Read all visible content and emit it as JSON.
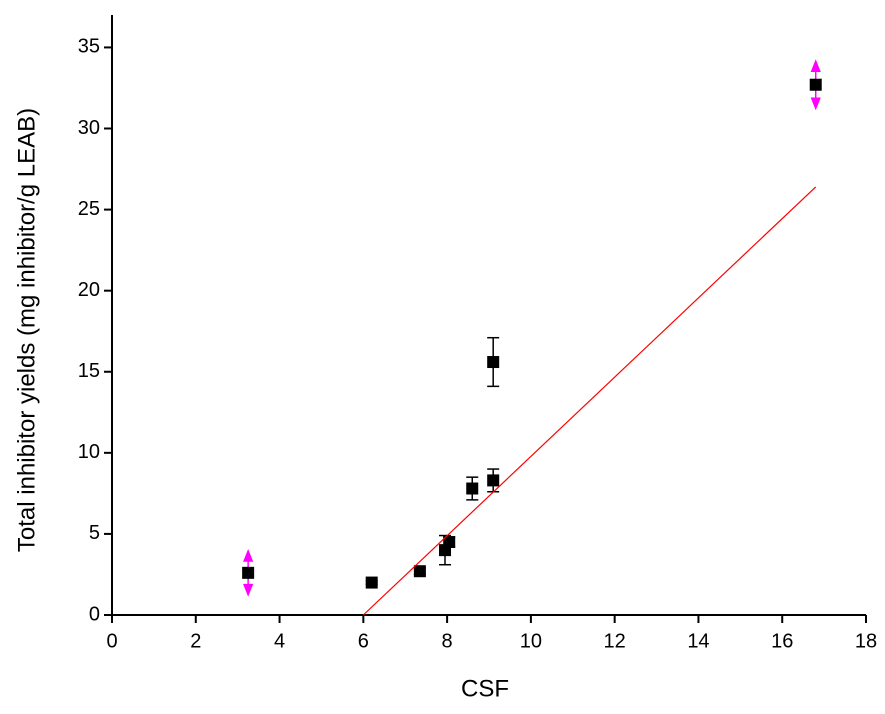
{
  "chart_data": {
    "type": "scatter",
    "x_label": "CSF",
    "y_label": "Total inhibitor yields (mg inhibitor/g LEAB)",
    "xlim": [
      0,
      18
    ],
    "ylim": [
      0,
      37
    ],
    "xticks": [
      0,
      2,
      4,
      6,
      8,
      10,
      12,
      14,
      16,
      18
    ],
    "yticks": [
      0,
      5,
      10,
      15,
      20,
      25,
      30,
      35
    ],
    "series": [
      {
        "type": "scatter",
        "color": "#000000",
        "x": [
          3.25,
          6.2,
          7.35,
          7.95,
          8.05,
          8.6,
          9.1,
          9.1,
          16.8
        ],
        "values": [
          2.6,
          2.0,
          2.7,
          4.0,
          4.5,
          7.8,
          15.6,
          8.3,
          32.7
        ],
        "errors": [
          1.1,
          0.1,
          0.2,
          0.9,
          0.3,
          0.7,
          1.5,
          0.7,
          1.2
        ],
        "error_colors": [
          "#ff00ff",
          "#000000",
          "#000000",
          "#000000",
          "#000000",
          "#000000",
          "#000000",
          "#000000",
          "#ff00ff"
        ]
      },
      {
        "type": "line",
        "color": "#ff0000",
        "x": [
          6.0,
          16.8
        ],
        "values": [
          0,
          26.4
        ]
      }
    ]
  }
}
